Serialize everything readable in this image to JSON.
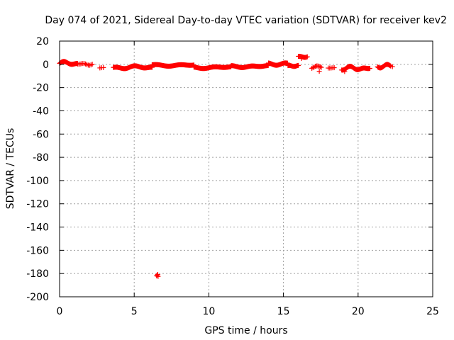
{
  "chart_data": {
    "type": "scatter",
    "title": "Day 074 of 2021, Sidereal Day-to-day VTEC variation (SDTVAR) for receiver kev2",
    "xlabel": "GPS time / hours",
    "ylabel": "SDTVAR / TECUs",
    "xlim": [
      0,
      25
    ],
    "ylim": [
      -200,
      20
    ],
    "xticks": [
      0,
      5,
      10,
      15,
      20,
      25
    ],
    "xtick_labels": [
      "0",
      "5",
      "10",
      "15",
      "20",
      "25"
    ],
    "yticks": [
      20,
      0,
      -20,
      -40,
      -60,
      -80,
      -100,
      -120,
      -140,
      -160,
      -180,
      -200
    ],
    "ytick_labels": [
      "20",
      "0",
      "-20",
      "-40",
      "-60",
      "-80",
      "-100",
      "-120",
      "-140",
      "-160",
      "-180",
      "-200"
    ],
    "grid": true,
    "marker": "plus",
    "color": "#ff0000",
    "series": [
      {
        "name": "SDTVAR",
        "segments": [
          {
            "x_start": 0.0,
            "x_end": 1.2,
            "step": 0.04,
            "y_base": 0.8,
            "y_amp": 1.8,
            "y_freq": 1.7
          },
          {
            "x_start": 1.2,
            "x_end": 2.2,
            "step": 0.09,
            "y_base": 0.2,
            "y_amp": 1.2,
            "y_freq": 2.3
          },
          {
            "x_start": 2.7,
            "x_end": 3.0,
            "step": 0.12,
            "y_base": -3.0,
            "y_amp": 0.5,
            "y_freq": 1.1
          },
          {
            "x_start": 3.6,
            "x_end": 6.2,
            "step": 0.04,
            "y_base": -2.6,
            "y_amp": 1.4,
            "y_freq": 1.3
          },
          {
            "x_start": 6.2,
            "x_end": 9.0,
            "step": 0.04,
            "y_base": -0.6,
            "y_amp": 1.0,
            "y_freq": 0.9
          },
          {
            "x_start": 9.0,
            "x_end": 11.5,
            "step": 0.04,
            "y_base": -2.6,
            "y_amp": 1.0,
            "y_freq": 1.0
          },
          {
            "x_start": 11.5,
            "x_end": 14.0,
            "step": 0.04,
            "y_base": -1.8,
            "y_amp": 1.0,
            "y_freq": 1.2
          },
          {
            "x_start": 14.0,
            "x_end": 15.3,
            "step": 0.04,
            "y_base": 0.4,
            "y_amp": 1.2,
            "y_freq": 1.5
          },
          {
            "x_start": 15.3,
            "x_end": 16.0,
            "step": 0.05,
            "y_base": -1.8,
            "y_amp": 2.4,
            "y_freq": 2.0
          },
          {
            "x_start": 16.0,
            "x_end": 16.6,
            "step": 0.05,
            "y_base": 6.6,
            "y_amp": 0.8,
            "y_freq": 2.5
          },
          {
            "x_start": 16.9,
            "x_end": 17.6,
            "step": 0.08,
            "y_base": -2.4,
            "y_amp": 1.2,
            "y_freq": 2.2
          },
          {
            "x_start": 18.0,
            "x_end": 18.4,
            "step": 0.1,
            "y_base": -3.2,
            "y_amp": 1.0,
            "y_freq": 1.8
          },
          {
            "x_start": 18.9,
            "x_end": 20.8,
            "step": 0.035,
            "y_base": -3.4,
            "y_amp": 1.8,
            "y_freq": 1.9
          },
          {
            "x_start": 21.3,
            "x_end": 22.2,
            "step": 0.04,
            "y_base": -1.6,
            "y_amp": 1.6,
            "y_freq": 2.1
          }
        ],
        "points": [
          [
            6.5,
            -182.0
          ],
          [
            6.55,
            -181.2
          ],
          [
            6.6,
            -182.5
          ],
          [
            6.58,
            -180.8
          ],
          [
            17.4,
            -6.0
          ],
          [
            22.3,
            -2.0
          ],
          [
            19.1,
            -6.2
          ],
          [
            16.2,
            5.0
          ]
        ]
      }
    ]
  }
}
